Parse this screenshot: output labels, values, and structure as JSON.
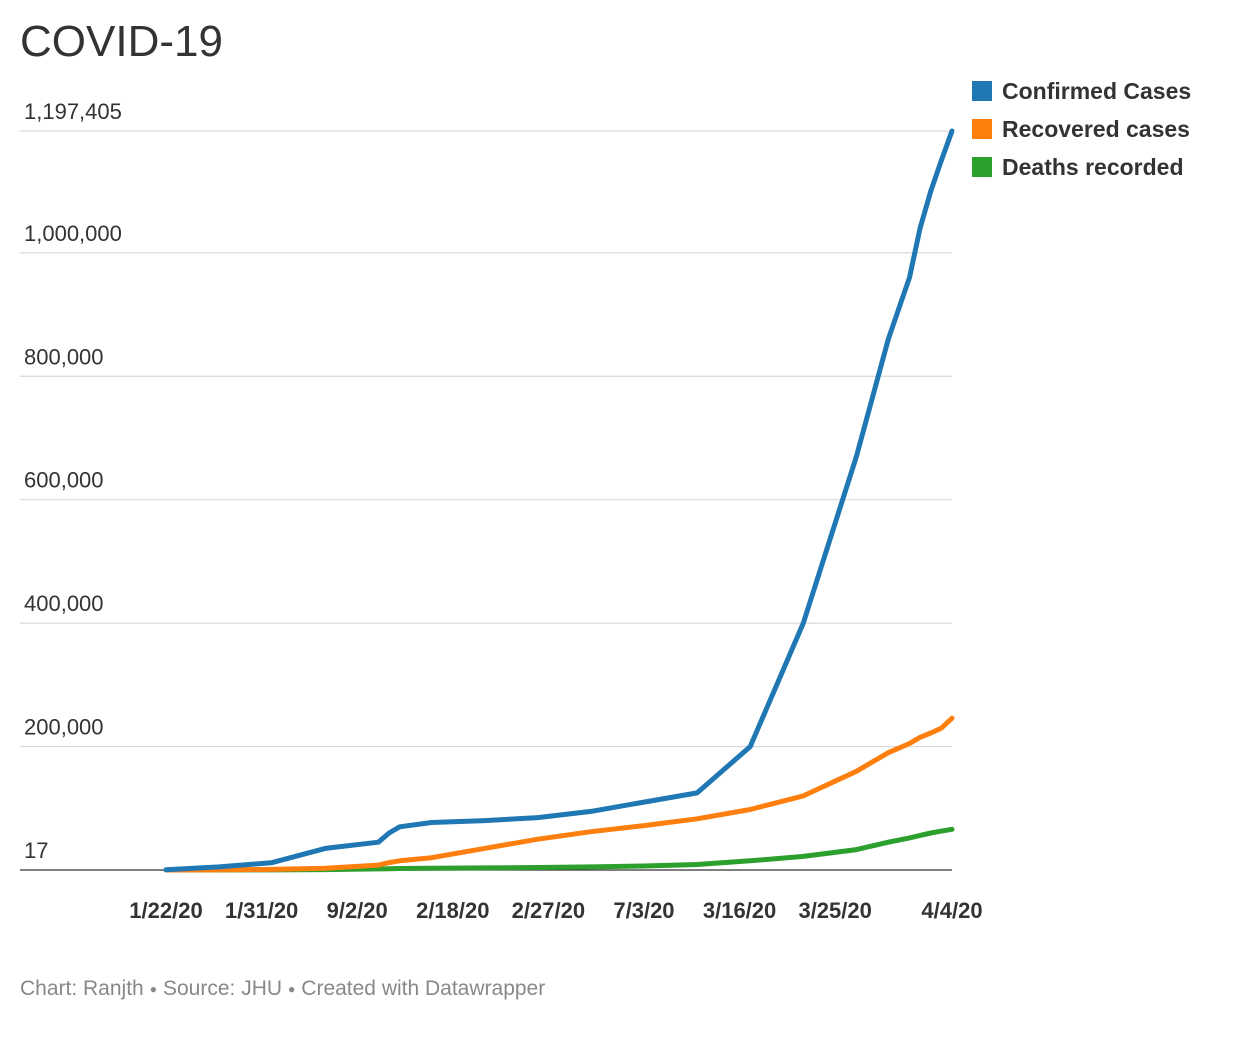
{
  "title": "COVID-19",
  "legend": [
    {
      "label": "Confirmed Cases",
      "color": "#1f77b4"
    },
    {
      "label": "Recovered cases",
      "color": "#ff7f0e"
    },
    {
      "label": "Deaths recorded",
      "color": "#2ca02c"
    }
  ],
  "footer": {
    "chart_by": "Chart: Ranjth",
    "source": "Source: JHU",
    "created_with": "Created with Datawrapper"
  },
  "chart_data": {
    "type": "line",
    "title": "COVID-19",
    "xlabel": "",
    "ylabel": "",
    "x_tick_labels": [
      "1/22/20",
      "1/31/20",
      "9/2/20",
      "2/18/20",
      "2/27/20",
      "7/3/20",
      "3/16/20",
      "3/25/20",
      "4/4/20"
    ],
    "x_ticks_at_day": [
      0,
      9,
      18,
      27,
      36,
      45,
      54,
      63,
      74
    ],
    "y_tick_labels": [
      "17",
      "200,000",
      "400,000",
      "600,000",
      "800,000",
      "1,000,000",
      "1,197,405"
    ],
    "y_ticks": [
      17,
      200000,
      400000,
      600000,
      800000,
      1000000,
      1197405
    ],
    "ylim": [
      17,
      1197405
    ],
    "grid": true,
    "legend_position": "top-right",
    "x": [
      0,
      5,
      10,
      15,
      20,
      21,
      22,
      25,
      30,
      35,
      40,
      45,
      50,
      55,
      60,
      65,
      68,
      70,
      71,
      72,
      73,
      74
    ],
    "series": [
      {
        "name": "Confirmed Cases",
        "color": "#1f77b4",
        "values": [
          555,
          5000,
          12000,
          35000,
          45000,
          60000,
          70000,
          77000,
          80000,
          85000,
          95000,
          110000,
          125000,
          200000,
          400000,
          670000,
          860000,
          960000,
          1040000,
          1100000,
          1150000,
          1197405
        ]
      },
      {
        "name": "Recovered cases",
        "color": "#ff7f0e",
        "values": [
          28,
          200,
          1000,
          3000,
          8000,
          12000,
          15000,
          20000,
          35000,
          50000,
          62000,
          72000,
          83000,
          98000,
          120000,
          160000,
          190000,
          205000,
          215000,
          222000,
          230000,
          246000
        ]
      },
      {
        "name": "Deaths recorded",
        "color": "#2ca02c",
        "values": [
          17,
          50,
          200,
          700,
          1800,
          2200,
          2500,
          3000,
          3500,
          4000,
          5000,
          6500,
          9000,
          15000,
          22000,
          33000,
          45000,
          52000,
          56000,
          60000,
          63000,
          66000
        ]
      }
    ]
  }
}
